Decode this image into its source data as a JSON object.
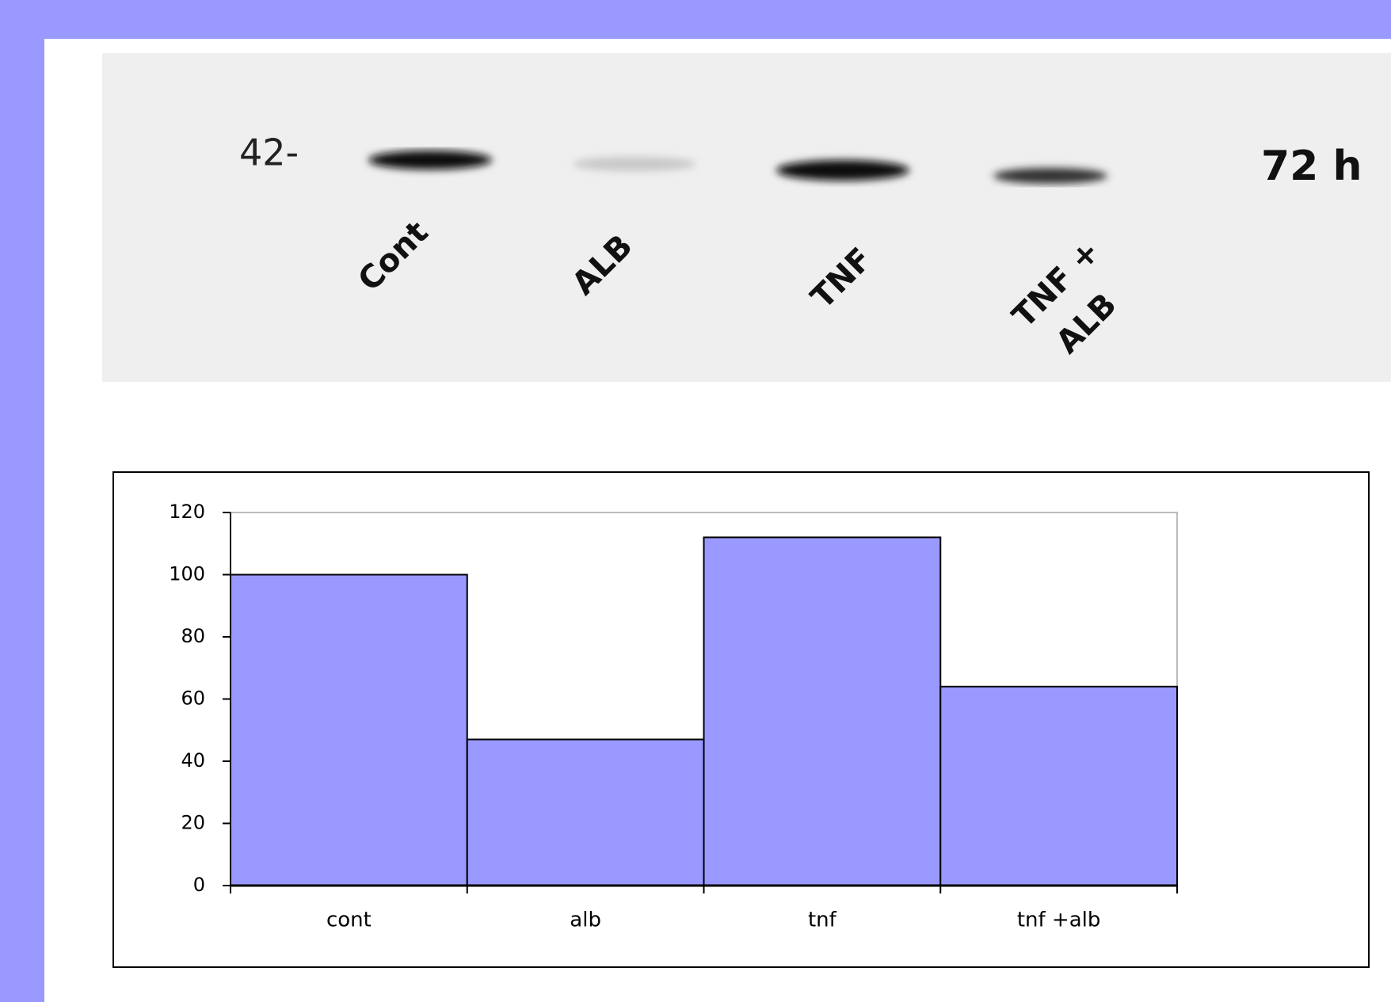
{
  "blot": {
    "marker": "42-",
    "time": "72 h",
    "lanes": [
      [
        "Cont"
      ],
      [
        "ALB"
      ],
      [
        "TNF"
      ],
      [
        "TNF +",
        "ALB"
      ]
    ]
  },
  "chart_data": {
    "type": "bar",
    "categories": [
      "cont",
      "alb",
      "tnf",
      "tnf +alb"
    ],
    "values": [
      100,
      47,
      112,
      64
    ],
    "color": "#9999ff",
    "ylim": [
      0,
      120
    ],
    "yticks": [
      0,
      20,
      40,
      60,
      80,
      100,
      120
    ]
  }
}
